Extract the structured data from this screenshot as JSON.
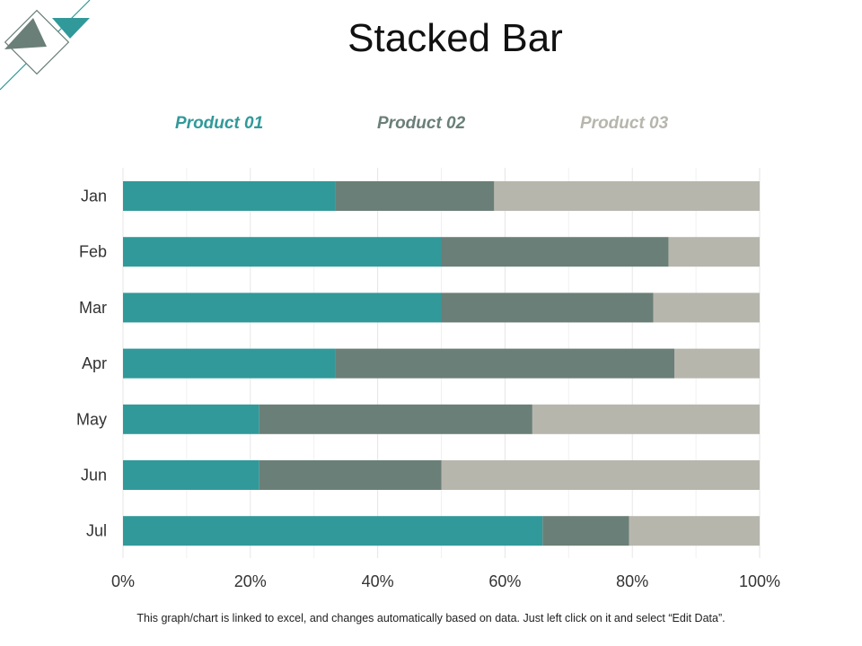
{
  "page": {
    "title": "Stacked Bar",
    "footer": "This graph/chart is linked to excel, and changes automatically based on data. Just left click on it and select “Edit Data”."
  },
  "colors": {
    "product_01": "#31999a",
    "product_02": "#6a7f77",
    "product_03": "#b7b6ad",
    "gridline": "#e6e6e6",
    "axis_text": "#333333"
  },
  "chart_data": {
    "type": "bar",
    "orientation": "horizontal",
    "stacked": true,
    "normalized": true,
    "title": "Stacked Bar",
    "categories": [
      "Jan",
      "Feb",
      "Mar",
      "Apr",
      "May",
      "Jun",
      "Jul"
    ],
    "series": [
      {
        "name": "Product 01",
        "values": [
          33.3,
          50.0,
          50.0,
          33.3,
          21.4,
          21.4,
          65.9
        ]
      },
      {
        "name": "Product 02",
        "values": [
          25.0,
          35.7,
          33.3,
          53.3,
          42.9,
          28.6,
          13.6
        ]
      },
      {
        "name": "Product 03",
        "values": [
          41.7,
          14.3,
          16.7,
          13.4,
          35.7,
          50.0,
          20.5
        ]
      }
    ],
    "xlim": [
      0,
      100
    ],
    "x_ticks": [
      "0%",
      "20%",
      "40%",
      "60%",
      "80%",
      "100%"
    ],
    "xlabel": "",
    "ylabel": "",
    "legend": "top",
    "grid": true
  }
}
